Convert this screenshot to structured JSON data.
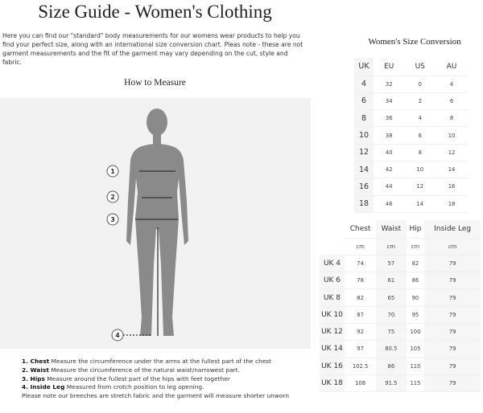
{
  "title": "Size Guide - Women's Clothing",
  "intro": "Here you can find our \"standard\" body measurements for our womens wear products to help you find your perfect size, along with an international size conversion chart. Pleas note - these are not garment measurements and the fit of the garment may vary depending on the cut, style and fabric.",
  "how_to_measure": "How to Measure",
  "figure_markers": [
    "1",
    "2",
    "3",
    "4"
  ],
  "notes": [
    {
      "n": "1. Chest",
      "t": " Measure the circumference under the arms at the fullest part of the chest"
    },
    {
      "n": "2. Waist",
      "t": " Measure the circumference of the natural waist/narrowest part."
    },
    {
      "n": "3. Hips",
      "t": " Measure around the fullest part of the hips with feet together"
    },
    {
      "n": "4. Inside Leg",
      "t": " Measured from crotch position to leg opening."
    }
  ],
  "note_footer": "Please note our breeches are stretch fabric and the garment will measure shorter unworn",
  "conversion": {
    "title": "Women's Size Conversion",
    "headers": [
      "UK",
      "EU",
      "US",
      "AU"
    ],
    "rows": [
      [
        "4",
        "32",
        "0",
        "4"
      ],
      [
        "6",
        "34",
        "2",
        "6"
      ],
      [
        "8",
        "36",
        "4",
        "8"
      ],
      [
        "10",
        "38",
        "6",
        "10"
      ],
      [
        "12",
        "40",
        "8",
        "12"
      ],
      [
        "14",
        "42",
        "10",
        "14"
      ],
      [
        "16",
        "44",
        "12",
        "16"
      ],
      [
        "18",
        "46",
        "14",
        "18"
      ]
    ]
  },
  "measurements": {
    "headers": [
      "",
      "Chest",
      "Waist",
      "Hip",
      "Inside Leg"
    ],
    "units": [
      "",
      "cm",
      "cm",
      "cm",
      "cm"
    ],
    "rows": [
      [
        "UK 4",
        "74",
        "57",
        "82",
        "79"
      ],
      [
        "UK 6",
        "78",
        "61",
        "86",
        "79"
      ],
      [
        "UK 8",
        "82",
        "65",
        "90",
        "79"
      ],
      [
        "UK 10",
        "87",
        "70",
        "95",
        "79"
      ],
      [
        "UK 12",
        "92",
        "75",
        "100",
        "79"
      ],
      [
        "UK 14",
        "97",
        "80.5",
        "105",
        "79"
      ],
      [
        "UK 16",
        "102.5",
        "86",
        "110",
        "79"
      ],
      [
        "UK 18",
        "108",
        "91.5",
        "115",
        "79"
      ]
    ]
  }
}
